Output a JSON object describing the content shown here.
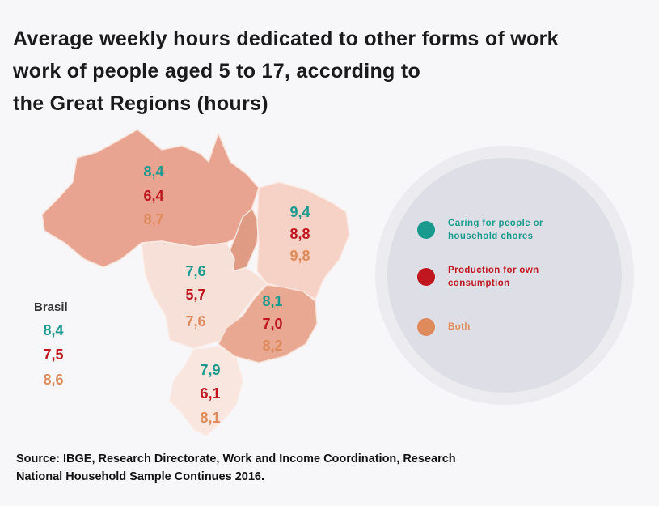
{
  "title": {
    "line1": "Average weekly hours dedicated to other forms of work",
    "line2": "work of people aged 5 to 17, according to",
    "line3": "the Great Regions (hours)"
  },
  "colors": {
    "caring": "#1a9a8e",
    "production": "#c0161f",
    "both": "#de8a5a"
  },
  "brasil": {
    "label": "Brasil",
    "caring": "8,4",
    "production": "7,5",
    "both": "8,6"
  },
  "regions": {
    "north": {
      "caring": "8,4",
      "production": "6,4",
      "both": "8,7"
    },
    "northeast": {
      "caring": "9,4",
      "production": "8,8",
      "both": "9,8"
    },
    "center_west": {
      "caring": "7,6",
      "production": "5,7",
      "both": "7,6"
    },
    "southeast": {
      "caring": "8,1",
      "production": "7,0",
      "both": "8,2"
    },
    "south": {
      "caring": "7,9",
      "production": "6,1",
      "both": "8,1"
    }
  },
  "legend": {
    "caring": {
      "line1": "Caring for people or",
      "line2": "household chores",
      "icon": "teal-dot-icon"
    },
    "production": {
      "line1": "Production for own",
      "line2": "consumption",
      "icon": "red-dot-icon"
    },
    "both": {
      "line1": "Both",
      "icon": "orange-dot-icon"
    }
  },
  "source": {
    "line1": "Source: IBGE, Research Directorate, Work and Income Coordination, Research",
    "line2": "National Household Sample Continues 2016."
  }
}
